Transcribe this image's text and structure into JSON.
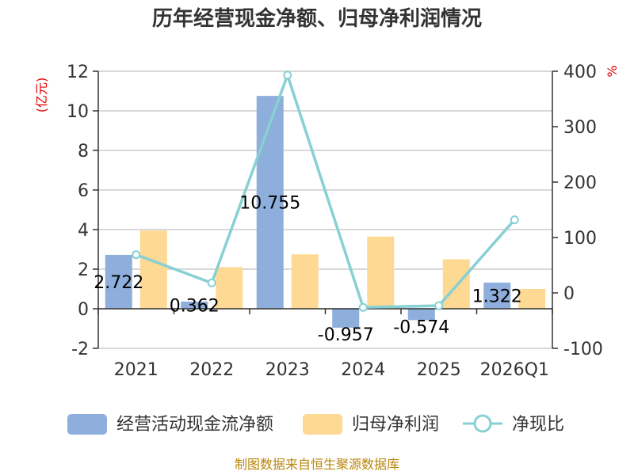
{
  "chart_data": {
    "type": "bar+line",
    "title": "历年经营现金净额、归母净利润情况",
    "categories": [
      "2021",
      "2022",
      "2023",
      "2024",
      "2025",
      "2026Q1"
    ],
    "left_axis": {
      "unit": "(亿元)",
      "ticks": [
        -2,
        0,
        2,
        4,
        6,
        8,
        10,
        12
      ],
      "range": [
        -2,
        12
      ]
    },
    "right_axis": {
      "unit": "%",
      "ticks": [
        -100,
        0,
        100,
        200,
        300,
        400
      ],
      "range": [
        -100,
        400
      ]
    },
    "series": [
      {
        "name": "经营活动现金流净额",
        "type": "bar",
        "axis": "left",
        "color": "#8eaedb",
        "values": [
          2.722,
          0.362,
          10.755,
          -0.957,
          -0.574,
          1.322
        ],
        "labels": [
          "2.722",
          "0.362",
          "10.755",
          "-0.957",
          "-0.574",
          "1.322"
        ]
      },
      {
        "name": "归母净利润",
        "type": "bar",
        "axis": "left",
        "color": "#fed993",
        "values": [
          3.95,
          2.1,
          2.75,
          3.65,
          2.5,
          1.0
        ]
      },
      {
        "name": "净现比",
        "type": "line",
        "axis": "right",
        "color": "#87d0d3",
        "values": [
          69,
          18,
          393,
          -26,
          -23,
          132
        ]
      }
    ],
    "source": "制图数据来自恒生聚源数据库"
  }
}
